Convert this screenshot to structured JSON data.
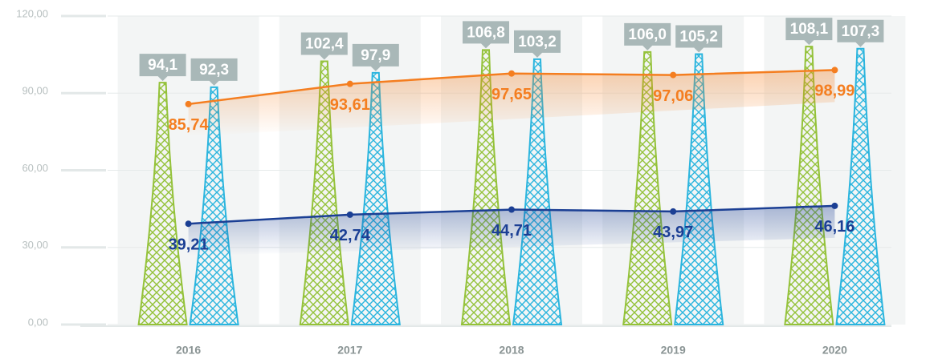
{
  "chart_data": {
    "type": "bar",
    "categories": [
      "2016",
      "2017",
      "2018",
      "2019",
      "2020"
    ],
    "ylim": [
      0,
      120
    ],
    "yticks": [
      {
        "value": 0,
        "label": "0,00"
      },
      {
        "value": 30,
        "label": "30,00"
      },
      {
        "value": 60,
        "label": "60,00"
      },
      {
        "value": 90,
        "label": "90,00"
      },
      {
        "value": 120,
        "label": "120,00"
      }
    ],
    "grid": true,
    "series": [
      {
        "type": "bar",
        "color": "#94c23a",
        "values": [
          94.1,
          102.4,
          106.8,
          106.0,
          108.1
        ],
        "value_labels": [
          "94,1",
          "102,4",
          "106,8",
          "106,0",
          "108,1"
        ]
      },
      {
        "type": "bar",
        "color": "#2bb5de",
        "values": [
          92.3,
          97.9,
          103.2,
          105.2,
          107.3
        ],
        "value_labels": [
          "92,3",
          "97,9",
          "103,2",
          "105,2",
          "107,3"
        ]
      },
      {
        "type": "line",
        "color": "#f47e20",
        "values": [
          85.74,
          93.61,
          97.65,
          97.06,
          98.99
        ],
        "value_labels": [
          "85,74",
          "93,61",
          "97,65",
          "97,06",
          "98,99"
        ]
      },
      {
        "type": "line",
        "color": "#1b3f94",
        "values": [
          39.21,
          42.74,
          44.71,
          43.97,
          46.16
        ],
        "value_labels": [
          "39,21",
          "42,74",
          "44,71",
          "43,97",
          "46,16"
        ]
      }
    ]
  }
}
